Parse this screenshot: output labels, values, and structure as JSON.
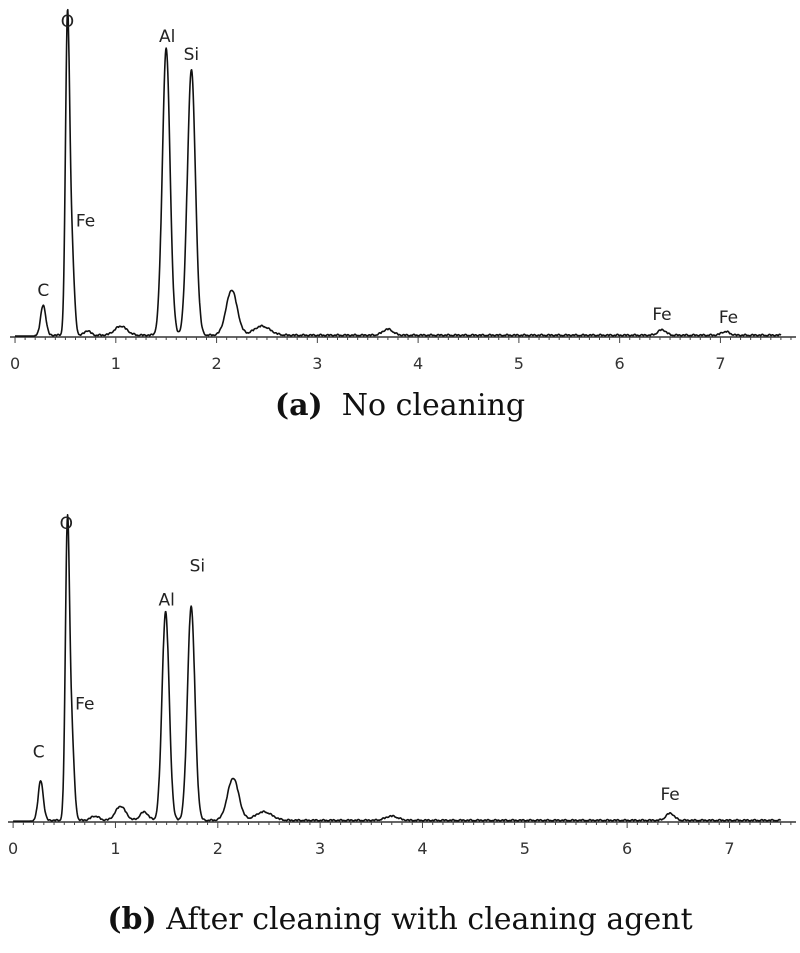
{
  "chart_data": [
    {
      "type": "line",
      "caption_label": "(a)",
      "caption_text": "No cleaning",
      "x_ticks": [
        "0",
        "1",
        "2",
        "3",
        "4",
        "5",
        "6",
        "7"
      ],
      "xlim": [
        -0.05,
        7.75
      ],
      "ylim": [
        0,
        100
      ],
      "grid": false,
      "peak_labels": [
        {
          "text": "O",
          "x": 0.52,
          "y": 100
        },
        {
          "text": "Al",
          "x": 1.51,
          "y": 95
        },
        {
          "text": "Si",
          "x": 1.75,
          "y": 89
        },
        {
          "text": "Fe",
          "x": 0.7,
          "y": 34
        },
        {
          "text": "C",
          "x": 0.28,
          "y": 11
        },
        {
          "text": "Fe",
          "x": 6.42,
          "y": 3
        },
        {
          "text": "Fe",
          "x": 7.08,
          "y": 2
        }
      ],
      "peaks": [
        {
          "x": 0.28,
          "y": 10,
          "w": 0.025
        },
        {
          "x": 0.52,
          "y": 99,
          "w": 0.02
        },
        {
          "x": 0.56,
          "y": 30,
          "w": 0.025
        },
        {
          "x": 0.72,
          "y": 1.5,
          "w": 0.03
        },
        {
          "x": 1.05,
          "y": 3,
          "w": 0.06
        },
        {
          "x": 1.5,
          "y": 95,
          "w": 0.038
        },
        {
          "x": 1.75,
          "y": 88,
          "w": 0.04
        },
        {
          "x": 2.15,
          "y": 15,
          "w": 0.055
        },
        {
          "x": 2.45,
          "y": 3,
          "w": 0.08
        },
        {
          "x": 3.7,
          "y": 2,
          "w": 0.05
        },
        {
          "x": 6.42,
          "y": 1.8,
          "w": 0.04
        },
        {
          "x": 7.05,
          "y": 1.2,
          "w": 0.04
        }
      ]
    },
    {
      "type": "line",
      "caption_label": "(b)",
      "caption_text": "After cleaning with cleaning agent",
      "x_ticks": [
        "0",
        "1",
        "2",
        "3",
        "4",
        "5",
        "6",
        "7"
      ],
      "xlim": [
        -0.05,
        7.65
      ],
      "ylim": [
        0,
        100
      ],
      "grid": false,
      "peak_labels": [
        {
          "text": "O",
          "x": 0.52,
          "y": 101
        },
        {
          "text": "Si",
          "x": 1.8,
          "y": 86
        },
        {
          "text": "Al",
          "x": 1.5,
          "y": 74
        },
        {
          "text": "Fe",
          "x": 0.7,
          "y": 37
        },
        {
          "text": "C",
          "x": 0.25,
          "y": 20
        },
        {
          "text": "Fe",
          "x": 6.42,
          "y": 5
        }
      ],
      "peaks": [
        {
          "x": 0.27,
          "y": 14,
          "w": 0.025
        },
        {
          "x": 0.53,
          "y": 99,
          "w": 0.02
        },
        {
          "x": 0.57,
          "y": 31,
          "w": 0.025
        },
        {
          "x": 0.8,
          "y": 1.5,
          "w": 0.04
        },
        {
          "x": 1.05,
          "y": 5,
          "w": 0.05
        },
        {
          "x": 1.28,
          "y": 3,
          "w": 0.04
        },
        {
          "x": 1.49,
          "y": 74,
          "w": 0.035
        },
        {
          "x": 1.74,
          "y": 76,
          "w": 0.036
        },
        {
          "x": 2.15,
          "y": 15,
          "w": 0.055
        },
        {
          "x": 2.45,
          "y": 3,
          "w": 0.08
        },
        {
          "x": 3.7,
          "y": 1.5,
          "w": 0.06
        },
        {
          "x": 6.42,
          "y": 2.5,
          "w": 0.04
        }
      ]
    }
  ]
}
